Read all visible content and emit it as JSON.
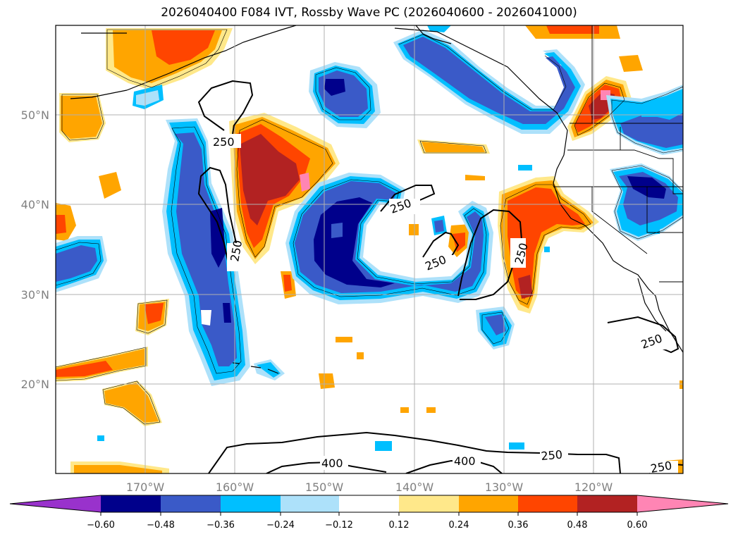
{
  "title": "2026040400 F084 IVT, Rossby Wave PC (2026040600 - 2026041000)",
  "map": {
    "projection": "PlateCarree",
    "lon_range": [
      -180,
      -110
    ],
    "lat_range": [
      10,
      60
    ],
    "lon_gridlines": [
      -170,
      -160,
      -150,
      -140,
      -130,
      -120
    ],
    "lat_gridlines": [
      20,
      30,
      40,
      50
    ],
    "lon_tick_labels": [
      "170°W",
      "160°W",
      "150°W",
      "140°W",
      "130°W",
      "120°W"
    ],
    "lat_tick_labels": [
      "20°N",
      "30°N",
      "40°N",
      "50°N"
    ],
    "contour_labels": [
      "250",
      "250",
      "250",
      "250",
      "250",
      "250",
      "250",
      "250",
      "400",
      "400"
    ]
  },
  "colorbar": {
    "tick_labels": [
      "−0.60",
      "−0.48",
      "−0.36",
      "−0.24",
      "−0.12",
      "0.12",
      "0.24",
      "0.36",
      "0.48",
      "0.60"
    ],
    "colors": [
      "#9932CC",
      "#00008B",
      "#3A5AC8",
      "#00BFFF",
      "#ADE1FA",
      "#FFFFFF",
      "#FFE88A",
      "#FFA500",
      "#FF4500",
      "#B22222",
      "#FF85B4"
    ]
  }
}
